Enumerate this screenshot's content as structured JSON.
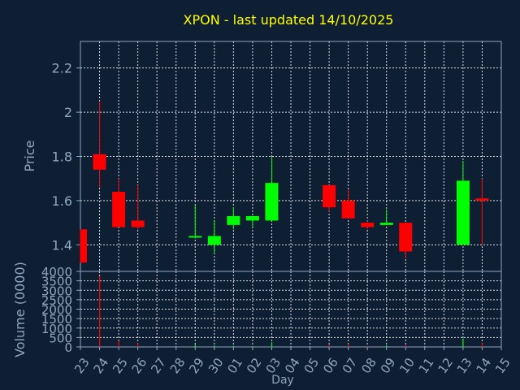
{
  "chart_data": {
    "type": "candlestick",
    "title": "XPON - last updated 14/10/2025",
    "xlabel": "Day",
    "ylabel": "Price",
    "volume_label": "Volume (0000)",
    "grid": true,
    "x_ticks": [
      "23",
      "24",
      "25",
      "26",
      "27",
      "28",
      "29",
      "30",
      "01",
      "02",
      "03",
      "04",
      "05",
      "06",
      "07",
      "08",
      "09",
      "10",
      "11",
      "12",
      "13",
      "14",
      "15"
    ],
    "price_ylim": [
      1.28,
      2.32
    ],
    "price_ticks": [
      1.4,
      1.6,
      1.8,
      2,
      2.2
    ],
    "price_tick_labels": [
      "1.4",
      "1.6",
      "1.8",
      "2",
      "2.2"
    ],
    "volume_ylim": [
      0,
      4000
    ],
    "volume_ticks": [
      0,
      500,
      1000,
      1500,
      2000,
      2500,
      3000,
      3500,
      4000
    ],
    "volume_tick_labels": [
      "0",
      "500",
      "1000",
      "1500",
      "2000",
      "2500",
      "3000",
      "3500",
      "4000"
    ],
    "colors": {
      "up": "#00ff00",
      "down": "#ff0000",
      "text": "#ffff00",
      "axis": "#8fa6bf",
      "background": "#0f1f33"
    },
    "candles": [
      {
        "day": "23",
        "open": 1.47,
        "high": 1.47,
        "low": 1.32,
        "close": 1.32,
        "volume": 0
      },
      {
        "day": "24",
        "open": 1.81,
        "high": 2.05,
        "low": 1.66,
        "close": 1.74,
        "volume": 3750
      },
      {
        "day": "25",
        "open": 1.64,
        "high": 1.7,
        "low": 1.48,
        "close": 1.48,
        "volume": 320
      },
      {
        "day": "26",
        "open": 1.51,
        "high": 1.67,
        "low": 1.47,
        "close": 1.48,
        "volume": 200
      },
      {
        "day": "29",
        "open": 1.44,
        "high": 1.58,
        "low": 1.43,
        "close": 1.44,
        "volume": 120
      },
      {
        "day": "30",
        "open": 1.4,
        "high": 1.51,
        "low": 1.36,
        "close": 1.44,
        "volume": 80
      },
      {
        "day": "01",
        "open": 1.49,
        "high": 1.57,
        "low": 1.47,
        "close": 1.53,
        "volume": 60
      },
      {
        "day": "02",
        "open": 1.51,
        "high": 1.53,
        "low": 1.48,
        "close": 1.53,
        "volume": 40
      },
      {
        "day": "03",
        "open": 1.51,
        "high": 1.8,
        "low": 1.51,
        "close": 1.68,
        "volume": 250
      },
      {
        "day": "06",
        "open": 1.67,
        "high": 1.67,
        "low": 1.55,
        "close": 1.57,
        "volume": 120
      },
      {
        "day": "07",
        "open": 1.6,
        "high": 1.65,
        "low": 1.52,
        "close": 1.52,
        "volume": 150
      },
      {
        "day": "08",
        "open": 1.5,
        "high": 1.51,
        "low": 1.47,
        "close": 1.48,
        "volume": 60
      },
      {
        "day": "09",
        "open": 1.49,
        "high": 1.56,
        "low": 1.49,
        "close": 1.5,
        "volume": 90
      },
      {
        "day": "10",
        "open": 1.5,
        "high": 1.5,
        "low": 1.34,
        "close": 1.37,
        "volume": 120
      },
      {
        "day": "13",
        "open": 1.4,
        "high": 1.78,
        "low": 1.4,
        "close": 1.69,
        "volume": 450
      },
      {
        "day": "14",
        "open": 1.61,
        "high": 1.7,
        "low": 1.4,
        "close": 1.6,
        "volume": 200
      }
    ]
  }
}
